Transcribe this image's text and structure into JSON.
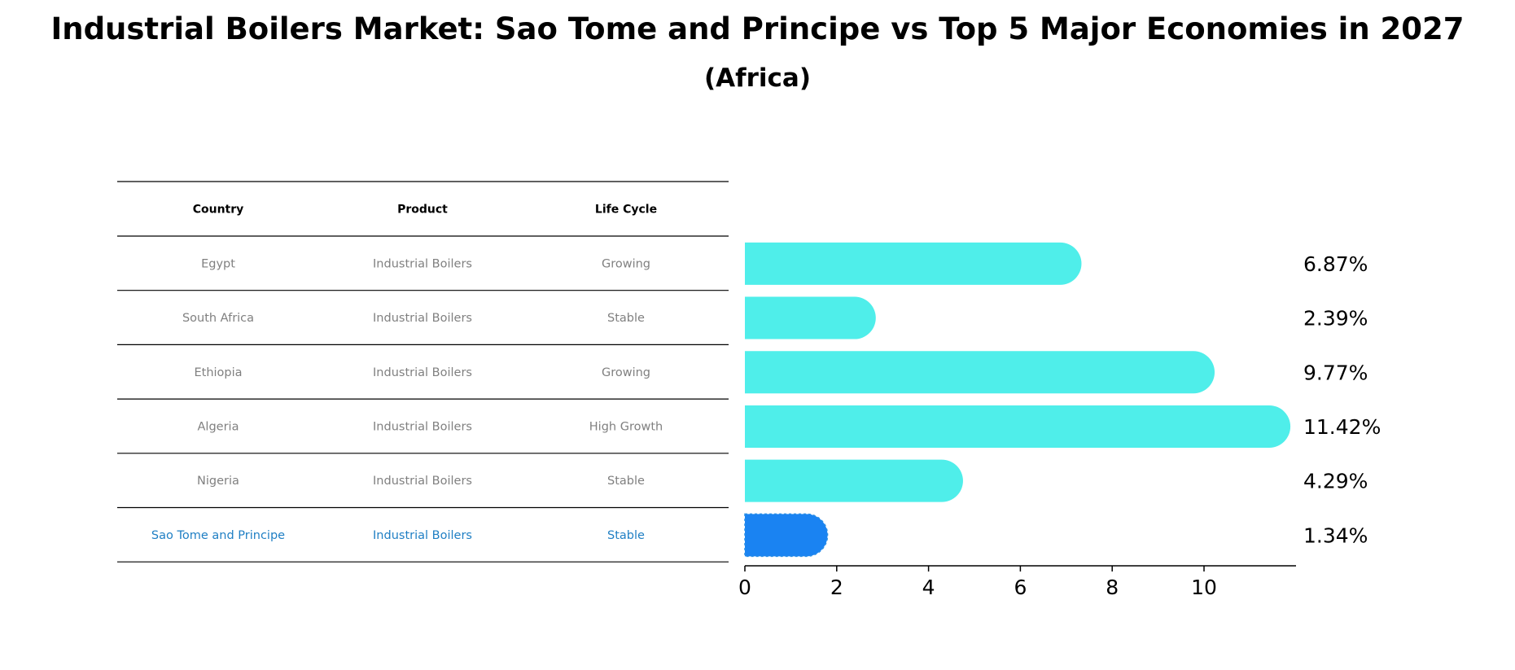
{
  "title": "Industrial Boilers Market: Sao Tome and Principe vs Top 5 Major Economies in 2027",
  "subtitle": "(Africa)",
  "table": {
    "headers": [
      "Country",
      "Product",
      "Life Cycle"
    ],
    "rows": [
      [
        "Egypt",
        "Industrial Boilers",
        "Growing"
      ],
      [
        "South Africa",
        "Industrial Boilers",
        "Stable"
      ],
      [
        "Ethiopia",
        "Industrial Boilers",
        "Growing"
      ],
      [
        "Algeria",
        "Industrial Boilers",
        "High Growth"
      ],
      [
        "Nigeria",
        "Industrial Boilers",
        "Stable"
      ],
      [
        "Sao Tome and Principe",
        "Industrial Boilers",
        "Stable"
      ]
    ],
    "highlight_row": 5,
    "text_color": "#808080",
    "highlight_text_color": "#1f7fc4"
  },
  "chart_data": {
    "type": "bar",
    "orientation": "horizontal",
    "categories": [
      "Egypt",
      "South Africa",
      "Ethiopia",
      "Algeria",
      "Nigeria",
      "Sao Tome and Principe"
    ],
    "values": [
      6.87,
      2.39,
      9.77,
      11.42,
      4.29,
      1.34
    ],
    "value_labels": [
      "6.87%",
      "2.39%",
      "9.77%",
      "11.42%",
      "4.29%",
      "1.34%"
    ],
    "x_ticks": [
      0,
      2,
      4,
      6,
      8,
      10
    ],
    "xlim": [
      0,
      12
    ],
    "bar_color": "#4feeea",
    "highlight_color": "#1a83f2",
    "highlight_index": 5
  }
}
